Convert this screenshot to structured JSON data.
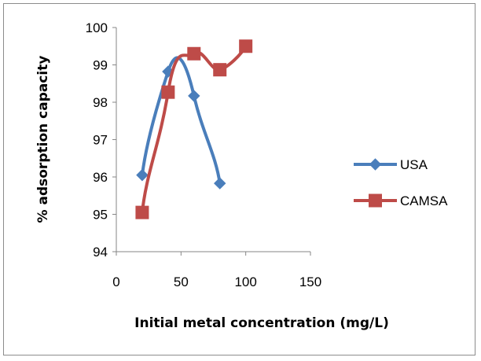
{
  "chart_data": {
    "type": "scatter",
    "title": "",
    "xlabel": "Initial metal concentration (mg/L)",
    "ylabel": "% adsorption capacity",
    "xlim": [
      0,
      150
    ],
    "ylim": [
      94,
      100
    ],
    "xticks": [
      0,
      50,
      100,
      150
    ],
    "yticks": [
      94,
      95,
      96,
      97,
      98,
      99,
      100
    ],
    "grid": false,
    "smooth_lines": true,
    "legend_position": "right",
    "series": [
      {
        "name": "USA",
        "marker": "diamond",
        "color": "#4a7ebb",
        "x": [
          20,
          40,
          60,
          80
        ],
        "y": [
          96.05,
          98.82,
          98.17,
          95.83
        ]
      },
      {
        "name": "CAMSA",
        "marker": "square",
        "color": "#be4b48",
        "x": [
          20,
          40,
          60,
          80,
          100
        ],
        "y": [
          95.05,
          98.27,
          99.3,
          98.87,
          99.5
        ]
      }
    ]
  }
}
